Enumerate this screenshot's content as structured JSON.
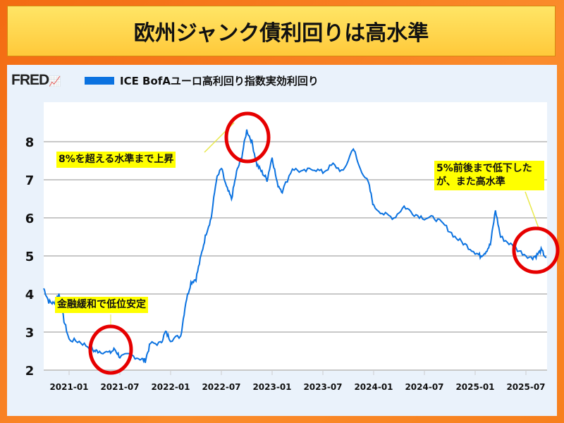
{
  "title": "欧州ジャンク債利回りは高水準",
  "brand": "FRED",
  "chart_data": {
    "type": "line",
    "title": "欧州ジャンク債利回りは高水準",
    "legend": [
      "ICE BofAユーロ高利回り指数実効利回り"
    ],
    "series": [
      {
        "name": "ICE BofAユーロ高利回り指数実効利回り",
        "color": "#0b72e0",
        "x": [
          2020.75,
          2020.8,
          2020.85,
          2020.9,
          2020.95,
          2021.0,
          2021.1,
          2021.2,
          2021.25,
          2021.3,
          2021.4,
          2021.45,
          2021.5,
          2021.6,
          2021.7,
          2021.75,
          2021.8,
          2021.9,
          2021.95,
          2022.0,
          2022.1,
          2022.15,
          2022.2,
          2022.25,
          2022.3,
          2022.35,
          2022.4,
          2022.45,
          2022.5,
          2022.55,
          2022.6,
          2022.65,
          2022.7,
          2022.75,
          2022.8,
          2022.85,
          2022.9,
          2022.95,
          2023.0,
          2023.05,
          2023.1,
          2023.2,
          2023.3,
          2023.4,
          2023.5,
          2023.6,
          2023.7,
          2023.8,
          2023.85,
          2023.95,
          2024.0,
          2024.1,
          2024.2,
          2024.3,
          2024.4,
          2024.5,
          2024.6,
          2024.7,
          2024.8,
          2024.9,
          2025.0,
          2025.05,
          2025.1,
          2025.15,
          2025.2,
          2025.25,
          2025.35,
          2025.45,
          2025.55,
          2025.6,
          2025.65,
          2025.7
        ],
        "y": [
          4.15,
          3.8,
          3.75,
          4.0,
          3.3,
          2.8,
          2.75,
          2.6,
          2.5,
          2.5,
          2.45,
          2.55,
          2.35,
          2.4,
          2.3,
          2.25,
          2.7,
          2.7,
          3.0,
          2.8,
          2.9,
          3.8,
          4.3,
          4.4,
          5.0,
          5.6,
          6.0,
          7.0,
          7.3,
          6.8,
          6.5,
          7.2,
          7.6,
          8.3,
          8.0,
          7.4,
          7.2,
          7.0,
          7.6,
          6.9,
          6.7,
          7.3,
          7.2,
          7.3,
          7.2,
          7.4,
          7.2,
          7.85,
          7.4,
          6.9,
          6.3,
          6.1,
          6.0,
          6.3,
          6.1,
          6.0,
          6.0,
          5.8,
          5.5,
          5.3,
          5.1,
          5.0,
          5.1,
          5.3,
          6.2,
          5.5,
          5.3,
          5.1,
          4.95,
          5.0,
          5.15,
          4.95
        ]
      }
    ],
    "yticks": [
      2,
      3,
      4,
      5,
      6,
      7,
      8
    ],
    "ylim": [
      2,
      8.6
    ],
    "xticks": [
      "2021-01",
      "2021-07",
      "2022-01",
      "2022-07",
      "2023-01",
      "2023-07",
      "2024-01",
      "2024-07",
      "2025-01",
      "2025-07"
    ],
    "xlim": [
      2020.75,
      2025.72
    ],
    "grid": true,
    "annotations": [
      {
        "text": "8%を超える水準まで上昇",
        "at": [
          2022.78,
          8.1
        ]
      },
      {
        "text": "5%前後まで低下したが、また高水準",
        "at": [
          2025.63,
          5.1
        ]
      },
      {
        "text": "金融緩和で低位安定",
        "at": [
          2021.4,
          2.45
        ]
      }
    ]
  }
}
